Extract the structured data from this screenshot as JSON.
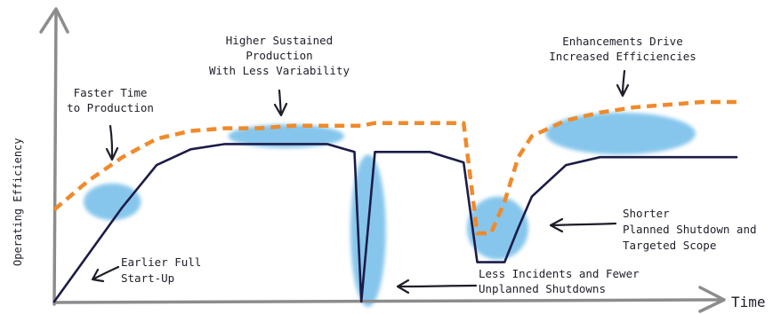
{
  "chart_data": {
    "type": "line",
    "xlabel": "Time",
    "ylabel": "Operating Efficiency",
    "x": [
      0,
      5,
      10,
      15,
      20,
      25,
      30,
      35,
      40,
      44,
      45,
      47,
      48,
      50,
      55,
      60,
      62,
      64,
      66,
      68,
      70,
      75,
      80,
      85,
      90,
      95,
      100
    ],
    "series": [
      {
        "values": [
          0,
          18,
          36,
          52,
          58,
          60,
          60,
          60,
          60,
          57,
          0,
          57,
          57,
          57,
          57,
          53,
          15,
          15,
          15,
          28,
          40,
          52,
          55,
          55,
          55,
          55,
          55
        ],
        "color": "#1c1c48"
      },
      {
        "values": [
          35,
          46,
          55,
          62,
          65,
          66,
          66,
          67,
          67,
          67,
          67,
          68,
          68,
          68,
          68,
          68,
          26,
          26,
          38,
          55,
          63,
          69,
          72,
          74,
          75,
          76,
          76
        ],
        "color": "#f08a2a",
        "dashed": true
      }
    ],
    "annotations": [
      {
        "id": "faster",
        "lines": [
          "Faster Time",
          "to Production"
        ]
      },
      {
        "id": "higher",
        "lines": [
          "Higher Sustained",
          "Production",
          "With Less Variability"
        ]
      },
      {
        "id": "enhance",
        "lines": [
          "Enhancements Drive",
          "Increased Efficiencies"
        ]
      },
      {
        "id": "earlier",
        "lines": [
          "Earlier Full",
          "Start-Up"
        ]
      },
      {
        "id": "less",
        "lines": [
          "Less Incidents and Fewer",
          "Unplanned Shutdowns"
        ]
      },
      {
        "id": "shorter",
        "lines": [
          "Shorter",
          "Planned Shutdown and",
          "Targeted Scope"
        ]
      }
    ],
    "highlight_color": "#5fb4e6",
    "grid": false
  }
}
